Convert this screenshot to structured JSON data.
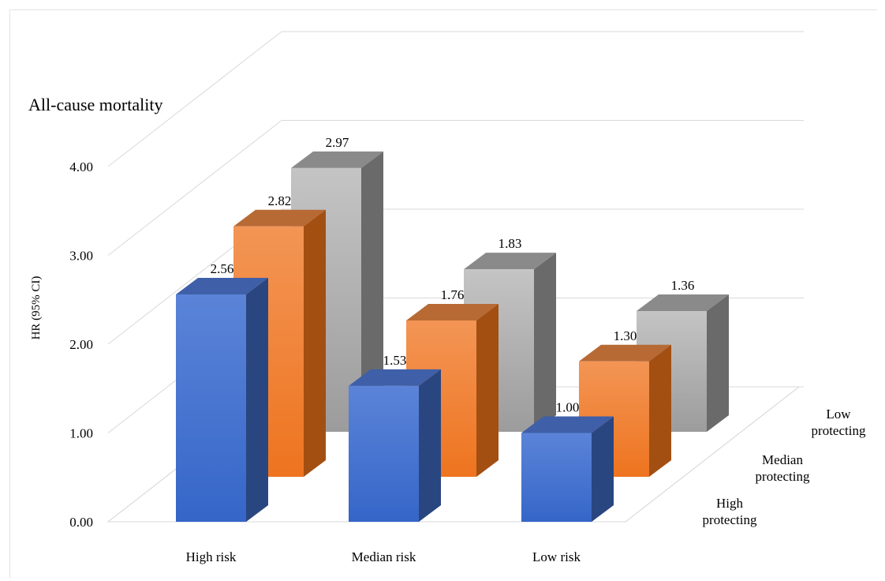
{
  "chart_data": {
    "type": "bar",
    "title": "All-cause mortality",
    "ylabel": "HR (95% CI)",
    "xlabel": "",
    "ylim": [
      0,
      4
    ],
    "y_ticks": [
      "0.00",
      "1.00",
      "2.00",
      "3.00",
      "4.00"
    ],
    "categories": [
      "High risk",
      "Median risk",
      "Low risk"
    ],
    "depth_labels": [
      [
        "High",
        "protecting"
      ],
      [
        "Median",
        "protecting"
      ],
      [
        "Low",
        "protecting"
      ]
    ],
    "series": [
      {
        "name": "High protecting",
        "values": [
          2.56,
          1.53,
          1.0
        ],
        "labels": [
          "2.56",
          "1.53",
          "1.00"
        ]
      },
      {
        "name": "Median protecting",
        "values": [
          2.82,
          1.76,
          1.3
        ],
        "labels": [
          "2.82",
          "1.76",
          "1.30"
        ]
      },
      {
        "name": "Low protecting",
        "values": [
          2.97,
          1.83,
          1.36
        ],
        "labels": [
          "2.97",
          "1.83",
          "1.36"
        ]
      }
    ],
    "colors": {
      "High protecting": {
        "front_top": "#5b84d8",
        "front_bottom": "#3566c8",
        "side": "#2a4680",
        "top": "#3f5fa8"
      },
      "Median protecting": {
        "front_top": "#f39555",
        "front_bottom": "#ee741f",
        "side": "#a34f12",
        "top": "#b86a35"
      },
      "Low protecting": {
        "front_top": "#c4c4c4",
        "front_bottom": "#9c9c9c",
        "side": "#6a6a6a",
        "top": "#8a8a8a"
      },
      "grid": "#d9d9d9"
    },
    "grid": true,
    "style": "3d-column"
  }
}
